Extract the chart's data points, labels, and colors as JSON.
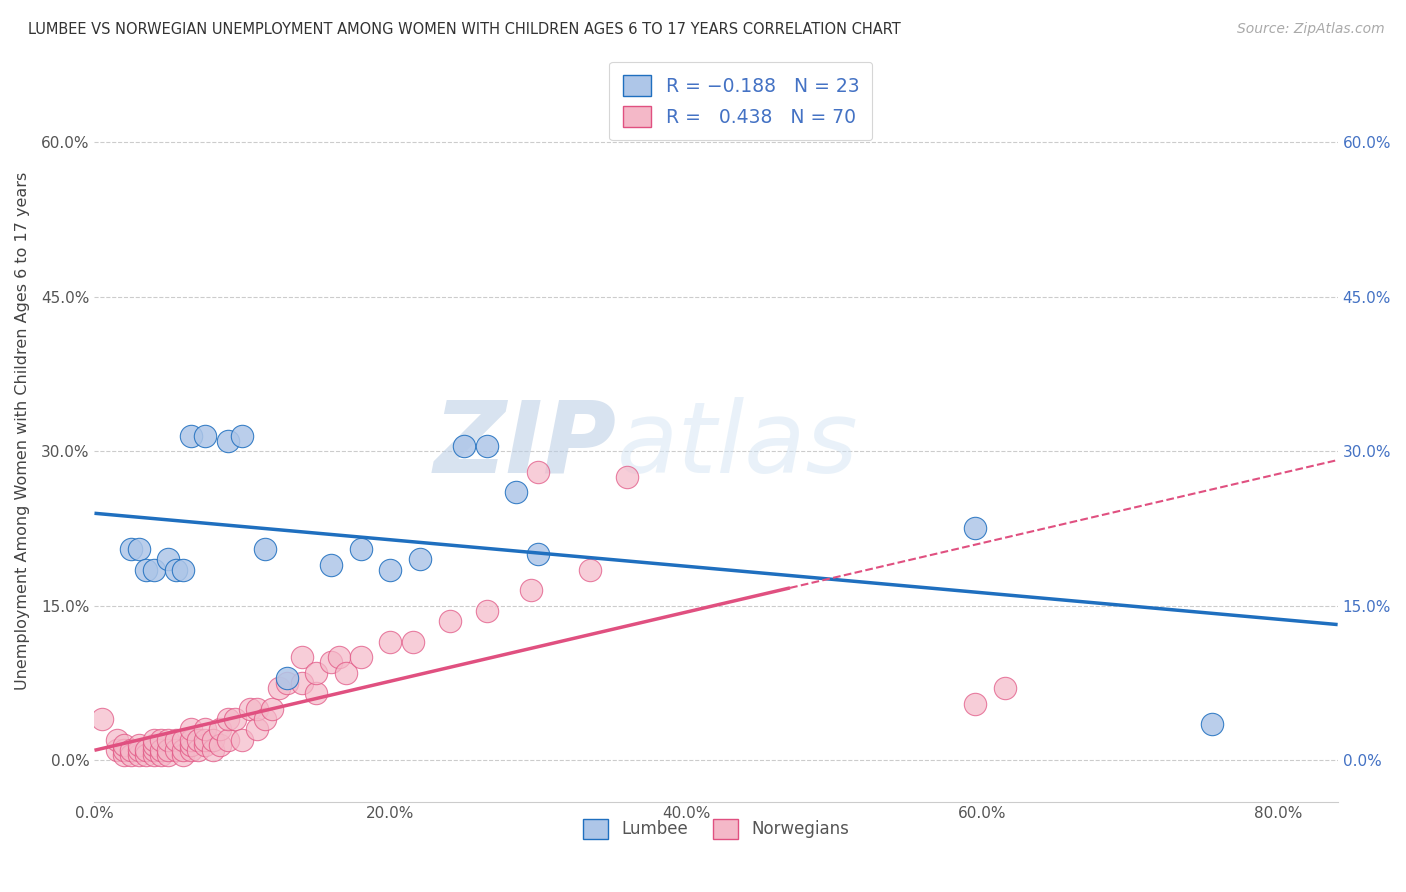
{
  "title": "LUMBEE VS NORWEGIAN UNEMPLOYMENT AMONG WOMEN WITH CHILDREN AGES 6 TO 17 YEARS CORRELATION CHART",
  "source": "Source: ZipAtlas.com",
  "ylabel": "Unemployment Among Women with Children Ages 6 to 17 years",
  "xlabel_ticks": [
    "0.0%",
    "20.0%",
    "40.0%",
    "60.0%",
    "80.0%"
  ],
  "ylabel_ticks_left": [
    "0.0%",
    "15.0%",
    "30.0%",
    "45.0%",
    "60.0%"
  ],
  "ylabel_ticks_right": [
    "0.0%",
    "15.0%",
    "30.0%",
    "45.0%",
    "60.0%"
  ],
  "xlim": [
    0.0,
    0.84
  ],
  "ylim": [
    -0.04,
    0.68
  ],
  "lumbee_R": -0.188,
  "lumbee_N": 23,
  "norwegian_R": 0.438,
  "norwegian_N": 70,
  "lumbee_color": "#aec6e8",
  "norwegian_color": "#f4b8c8",
  "lumbee_line_color": "#1f6fbf",
  "norwegian_line_color": "#e05080",
  "watermark_zip": "ZIP",
  "watermark_atlas": "atlas",
  "lumbee_x": [
    0.025,
    0.03,
    0.035,
    0.04,
    0.05,
    0.055,
    0.06,
    0.065,
    0.075,
    0.09,
    0.1,
    0.115,
    0.13,
    0.16,
    0.18,
    0.2,
    0.22,
    0.25,
    0.265,
    0.285,
    0.3,
    0.595,
    0.755
  ],
  "lumbee_y": [
    0.205,
    0.205,
    0.185,
    0.185,
    0.195,
    0.185,
    0.185,
    0.315,
    0.315,
    0.31,
    0.315,
    0.205,
    0.08,
    0.19,
    0.205,
    0.185,
    0.195,
    0.305,
    0.305,
    0.26,
    0.2,
    0.225,
    0.035
  ],
  "norwegian_x": [
    0.005,
    0.015,
    0.015,
    0.02,
    0.02,
    0.02,
    0.025,
    0.025,
    0.03,
    0.03,
    0.03,
    0.035,
    0.035,
    0.04,
    0.04,
    0.04,
    0.04,
    0.045,
    0.045,
    0.045,
    0.05,
    0.05,
    0.05,
    0.055,
    0.055,
    0.06,
    0.06,
    0.06,
    0.065,
    0.065,
    0.065,
    0.065,
    0.07,
    0.07,
    0.075,
    0.075,
    0.075,
    0.08,
    0.08,
    0.085,
    0.085,
    0.09,
    0.09,
    0.095,
    0.1,
    0.105,
    0.11,
    0.11,
    0.115,
    0.12,
    0.125,
    0.13,
    0.14,
    0.14,
    0.15,
    0.15,
    0.16,
    0.165,
    0.17,
    0.18,
    0.2,
    0.215,
    0.24,
    0.265,
    0.295,
    0.3,
    0.335,
    0.36,
    0.595,
    0.615
  ],
  "norwegian_y": [
    0.04,
    0.01,
    0.02,
    0.005,
    0.01,
    0.015,
    0.005,
    0.01,
    0.005,
    0.01,
    0.015,
    0.005,
    0.01,
    0.005,
    0.01,
    0.015,
    0.02,
    0.005,
    0.01,
    0.02,
    0.005,
    0.01,
    0.02,
    0.01,
    0.02,
    0.005,
    0.01,
    0.02,
    0.01,
    0.015,
    0.02,
    0.03,
    0.01,
    0.02,
    0.015,
    0.02,
    0.03,
    0.01,
    0.02,
    0.015,
    0.03,
    0.02,
    0.04,
    0.04,
    0.02,
    0.05,
    0.03,
    0.05,
    0.04,
    0.05,
    0.07,
    0.075,
    0.075,
    0.1,
    0.065,
    0.085,
    0.095,
    0.1,
    0.085,
    0.1,
    0.115,
    0.115,
    0.135,
    0.145,
    0.165,
    0.28,
    0.185,
    0.275,
    0.055,
    0.07
  ]
}
